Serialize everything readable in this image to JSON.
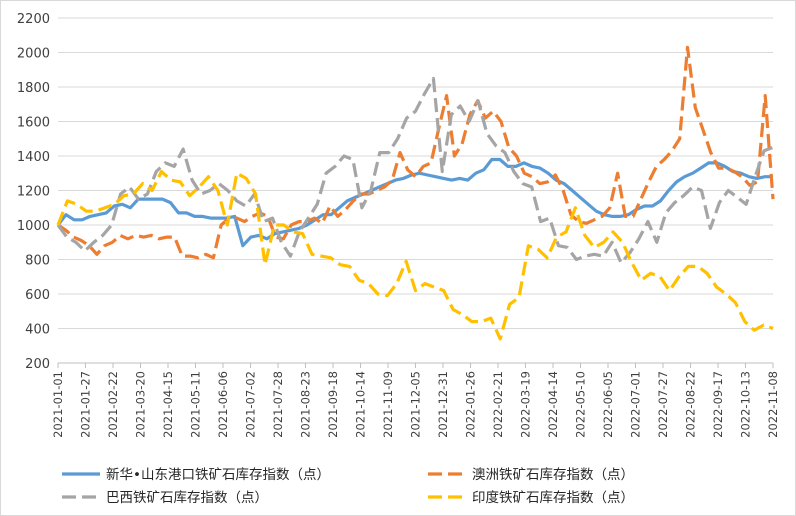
{
  "chart_data": {
    "type": "line",
    "title": "",
    "xlabel": "",
    "ylabel": "",
    "ylim": [
      200,
      2200
    ],
    "yticks": [
      200,
      400,
      600,
      800,
      1000,
      1200,
      1400,
      1600,
      1800,
      2000,
      2200
    ],
    "xticks": [
      "2021-01-01",
      "2021-01-27",
      "2021-02-22",
      "2021-03-20",
      "2021-04-15",
      "2021-05-11",
      "2021-06-06",
      "2021-07-02",
      "2021-07-28",
      "2021-08-23",
      "2021-09-18",
      "2021-10-14",
      "2021-11-09",
      "2021-12-05",
      "2021-12-31",
      "2022-01-26",
      "2022-02-21",
      "2022-03-19",
      "2022-04-14",
      "2022-05-10",
      "2022-06-05",
      "2022-07-01",
      "2022-07-27",
      "2022-08-22",
      "2022-09-17",
      "2022-10-13",
      "2022-11-08"
    ],
    "legend_position": "bottom",
    "series": [
      {
        "name": "新华•山东港口铁矿石库存指数（点）",
        "color": "#5b9bd5",
        "dash": "solid",
        "values": [
          1000,
          1060,
          1030,
          1030,
          1050,
          1060,
          1070,
          1110,
          1120,
          1100,
          1150,
          1150,
          1150,
          1150,
          1130,
          1070,
          1070,
          1050,
          1050,
          1040,
          1040,
          1040,
          1050,
          880,
          930,
          940,
          920,
          950,
          960,
          970,
          980,
          1000,
          1030,
          1060,
          1060,
          1100,
          1140,
          1160,
          1180,
          1200,
          1220,
          1240,
          1260,
          1270,
          1290,
          1300,
          1290,
          1280,
          1270,
          1260,
          1270,
          1260,
          1300,
          1320,
          1380,
          1380,
          1340,
          1340,
          1360,
          1340,
          1330,
          1300,
          1260,
          1240,
          1200,
          1160,
          1120,
          1080,
          1060,
          1050,
          1050,
          1060,
          1090,
          1110,
          1110,
          1140,
          1200,
          1250,
          1280,
          1300,
          1330,
          1360,
          1360,
          1340,
          1310,
          1300,
          1280,
          1270,
          1280,
          1280
        ]
      },
      {
        "name": "澳洲铁矿石库存指数（点）",
        "color": "#ed7d31",
        "dash": "long",
        "values": [
          1000,
          970,
          930,
          910,
          880,
          830,
          880,
          900,
          940,
          920,
          940,
          930,
          940,
          920,
          930,
          930,
          820,
          820,
          810,
          830,
          810,
          1000,
          1040,
          1040,
          1020,
          1050,
          1070,
          1050,
          930,
          920,
          1000,
          1020,
          1020,
          1040,
          1010,
          1110,
          1050,
          1090,
          1140,
          1180,
          1180,
          1200,
          1220,
          1260,
          1420,
          1320,
          1280,
          1340,
          1360,
          1560,
          1750,
          1400,
          1470,
          1640,
          1720,
          1620,
          1660,
          1600,
          1450,
          1400,
          1300,
          1280,
          1240,
          1250,
          1290,
          1200,
          1060,
          1020,
          1010,
          1030,
          1050,
          1100,
          1300,
          1050,
          1050,
          1150,
          1250,
          1340,
          1380,
          1430,
          1500,
          2030,
          1680,
          1550,
          1420,
          1330,
          1330,
          1310,
          1280,
          1230,
          1250,
          1750,
          1150
        ]
      },
      {
        "name": "巴西铁矿石库存指数（点）",
        "color": "#a5a5a5",
        "dash": "long",
        "values": [
          1000,
          930,
          900,
          850,
          900,
          940,
          1000,
          1180,
          1220,
          1150,
          1180,
          1310,
          1360,
          1340,
          1440,
          1260,
          1180,
          1200,
          1240,
          1200,
          1140,
          1110,
          1180,
          1020,
          1040,
          900,
          820,
          960,
          1040,
          1120,
          1300,
          1340,
          1400,
          1380,
          1100,
          1200,
          1420,
          1420,
          1500,
          1620,
          1660,
          1760,
          1850,
          1310,
          1640,
          1690,
          1600,
          1720,
          1530,
          1460,
          1420,
          1310,
          1240,
          1220,
          1020,
          1040,
          880,
          870,
          800,
          820,
          830,
          820,
          900,
          780,
          840,
          920,
          1020,
          900,
          1070,
          1130,
          1170,
          1220,
          1200,
          980,
          1130,
          1200,
          1160,
          1120,
          1280,
          1430,
          1450
        ]
      },
      {
        "name": "印度铁矿石库存指数（点）",
        "color": "#ffc000",
        "dash": "long",
        "values": [
          1000,
          1140,
          1120,
          1080,
          1080,
          1100,
          1120,
          1170,
          1180,
          1240,
          1200,
          1310,
          1260,
          1250,
          1170,
          1220,
          1280,
          1200,
          1000,
          1300,
          1270,
          1180,
          770,
          1000,
          1000,
          960,
          950,
          830,
          820,
          810,
          770,
          760,
          680,
          660,
          600,
          590,
          660,
          790,
          620,
          660,
          640,
          620,
          510,
          480,
          440,
          440,
          460,
          340,
          540,
          580,
          880,
          860,
          810,
          930,
          960,
          1100,
          940,
          870,
          900,
          960,
          900,
          780,
          680,
          720,
          700,
          620,
          700,
          760,
          760,
          720,
          640,
          600,
          550,
          440,
          390,
          420,
          400
        ]
      }
    ]
  }
}
